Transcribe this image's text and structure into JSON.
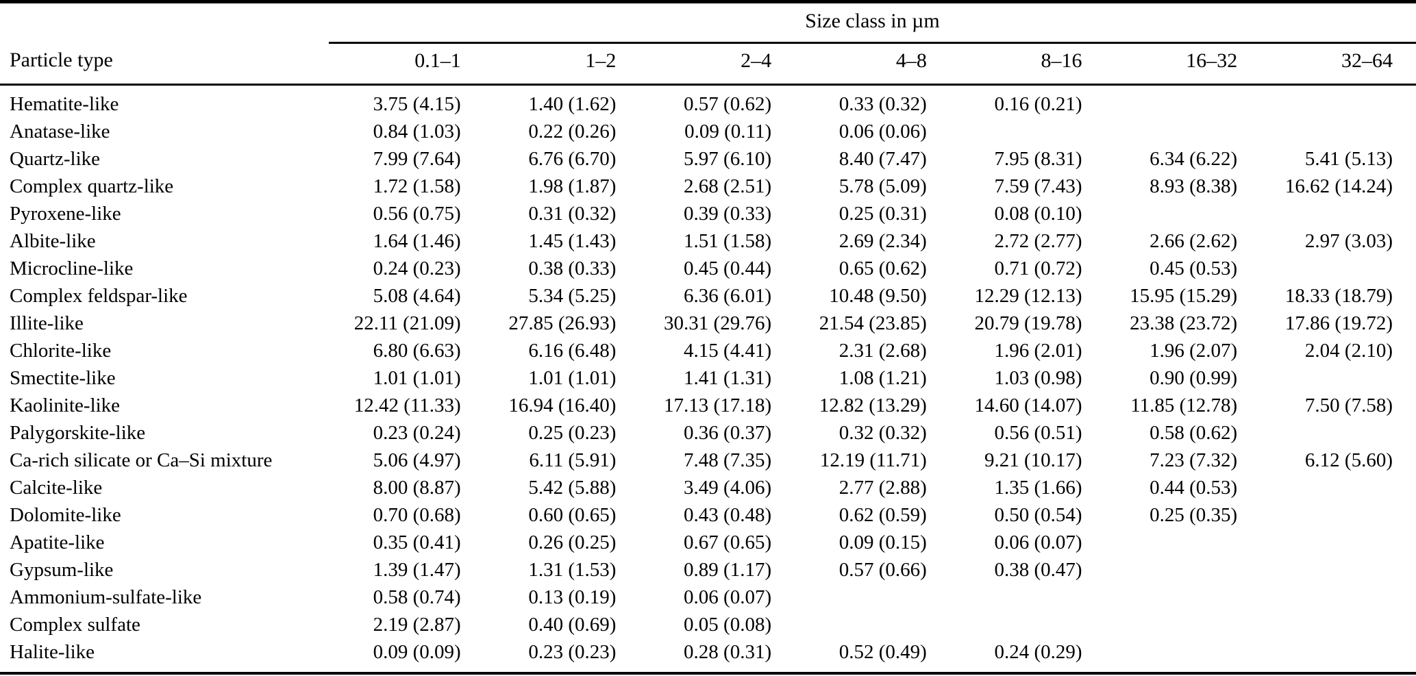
{
  "table": {
    "spanner_label": "Size class in µm",
    "row_header_label": "Particle type",
    "size_classes": [
      "0.1–1",
      "1–2",
      "2–4",
      "4–8",
      "8–16",
      "16–32",
      "32–64"
    ],
    "rows": [
      {
        "particle_type": "Hematite-like",
        "values": [
          "3.75 (4.15)",
          "1.40 (1.62)",
          "0.57 (0.62)",
          "0.33 (0.32)",
          "0.16 (0.21)",
          "",
          ""
        ]
      },
      {
        "particle_type": "Anatase-like",
        "values": [
          "0.84 (1.03)",
          "0.22 (0.26)",
          "0.09 (0.11)",
          "0.06 (0.06)",
          "",
          "",
          ""
        ]
      },
      {
        "particle_type": "Quartz-like",
        "values": [
          "7.99 (7.64)",
          "6.76 (6.70)",
          "5.97 (6.10)",
          "8.40 (7.47)",
          "7.95 (8.31)",
          "6.34 (6.22)",
          "5.41 (5.13)"
        ]
      },
      {
        "particle_type": "Complex quartz-like",
        "values": [
          "1.72 (1.58)",
          "1.98 (1.87)",
          "2.68 (2.51)",
          "5.78 (5.09)",
          "7.59 (7.43)",
          "8.93 (8.38)",
          "16.62 (14.24)"
        ]
      },
      {
        "particle_type": "Pyroxene-like",
        "values": [
          "0.56 (0.75)",
          "0.31 (0.32)",
          "0.39 (0.33)",
          "0.25 (0.31)",
          "0.08 (0.10)",
          "",
          ""
        ]
      },
      {
        "particle_type": "Albite-like",
        "values": [
          "1.64 (1.46)",
          "1.45 (1.43)",
          "1.51 (1.58)",
          "2.69 (2.34)",
          "2.72 (2.77)",
          "2.66 (2.62)",
          "2.97 (3.03)"
        ]
      },
      {
        "particle_type": "Microcline-like",
        "values": [
          "0.24 (0.23)",
          "0.38 (0.33)",
          "0.45 (0.44)",
          "0.65 (0.62)",
          "0.71 (0.72)",
          "0.45 (0.53)",
          ""
        ]
      },
      {
        "particle_type": "Complex feldspar-like",
        "values": [
          "5.08 (4.64)",
          "5.34 (5.25)",
          "6.36 (6.01)",
          "10.48 (9.50)",
          "12.29 (12.13)",
          "15.95 (15.29)",
          "18.33 (18.79)"
        ]
      },
      {
        "particle_type": "Illite-like",
        "values": [
          "22.11 (21.09)",
          "27.85 (26.93)",
          "30.31 (29.76)",
          "21.54 (23.85)",
          "20.79 (19.78)",
          "23.38 (23.72)",
          "17.86 (19.72)"
        ]
      },
      {
        "particle_type": "Chlorite-like",
        "values": [
          "6.80 (6.63)",
          "6.16 (6.48)",
          "4.15 (4.41)",
          "2.31 (2.68)",
          "1.96 (2.01)",
          "1.96 (2.07)",
          "2.04 (2.10)"
        ]
      },
      {
        "particle_type": "Smectite-like",
        "values": [
          "1.01 (1.01)",
          "1.01 (1.01)",
          "1.41 (1.31)",
          "1.08 (1.21)",
          "1.03 (0.98)",
          "0.90 (0.99)",
          ""
        ]
      },
      {
        "particle_type": "Kaolinite-like",
        "values": [
          "12.42 (11.33)",
          "16.94 (16.40)",
          "17.13 (17.18)",
          "12.82 (13.29)",
          "14.60 (14.07)",
          "11.85 (12.78)",
          "7.50 (7.58)"
        ]
      },
      {
        "particle_type": "Palygorskite-like",
        "values": [
          "0.23 (0.24)",
          "0.25 (0.23)",
          "0.36 (0.37)",
          "0.32 (0.32)",
          "0.56 (0.51)",
          "0.58 (0.62)",
          ""
        ]
      },
      {
        "particle_type": "Ca-rich silicate or Ca–Si mixture",
        "values": [
          "5.06 (4.97)",
          "6.11 (5.91)",
          "7.48 (7.35)",
          "12.19 (11.71)",
          "9.21 (10.17)",
          "7.23 (7.32)",
          "6.12 (5.60)"
        ]
      },
      {
        "particle_type": "Calcite-like",
        "values": [
          "8.00 (8.87)",
          "5.42 (5.88)",
          "3.49 (4.06)",
          "2.77 (2.88)",
          "1.35 (1.66)",
          "0.44 (0.53)",
          ""
        ]
      },
      {
        "particle_type": "Dolomite-like",
        "values": [
          "0.70 (0.68)",
          "0.60 (0.65)",
          "0.43 (0.48)",
          "0.62 (0.59)",
          "0.50 (0.54)",
          "0.25 (0.35)",
          ""
        ]
      },
      {
        "particle_type": "Apatite-like",
        "values": [
          "0.35 (0.41)",
          "0.26 (0.25)",
          "0.67 (0.65)",
          "0.09 (0.15)",
          "0.06 (0.07)",
          "",
          ""
        ]
      },
      {
        "particle_type": "Gypsum-like",
        "values": [
          "1.39 (1.47)",
          "1.31 (1.53)",
          "0.89 (1.17)",
          "0.57 (0.66)",
          "0.38 (0.47)",
          "",
          ""
        ]
      },
      {
        "particle_type": "Ammonium-sulfate-like",
        "values": [
          "0.58 (0.74)",
          "0.13 (0.19)",
          "0.06 (0.07)",
          "",
          "",
          "",
          ""
        ]
      },
      {
        "particle_type": "Complex sulfate",
        "values": [
          "2.19 (2.87)",
          "0.40 (0.69)",
          "0.05 (0.08)",
          "",
          "",
          "",
          ""
        ]
      },
      {
        "particle_type": "Halite-like",
        "values": [
          "0.09 (0.09)",
          "0.23 (0.23)",
          "0.28 (0.31)",
          "0.52 (0.49)",
          "0.24 (0.29)",
          "",
          ""
        ]
      }
    ]
  }
}
